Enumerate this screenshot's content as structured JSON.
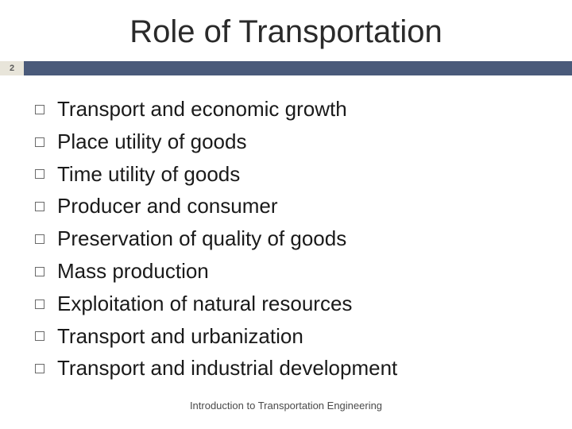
{
  "slide": {
    "title": "Role of Transportation",
    "page_number": "2",
    "title_color": "#2a2a2a",
    "title_fontsize": 40,
    "divider_bar_color": "#4a5a7a",
    "page_num_bg": "#e8e5da",
    "background_color": "#ffffff",
    "bullets": [
      "Transport and economic growth",
      "Place utility of goods",
      "Time utility of goods",
      "Producer and consumer",
      "Preservation of quality of goods",
      "Mass production",
      "Exploitation of natural resources",
      "Transport and urbanization",
      "Transport and industrial development"
    ],
    "bullet_fontsize": 26,
    "bullet_color": "#1a1a1a",
    "bullet_marker_border": "#6a6a6a",
    "footer": "Introduction to Transportation Engineering",
    "footer_fontsize": 13,
    "footer_color": "#4a4a4a"
  }
}
